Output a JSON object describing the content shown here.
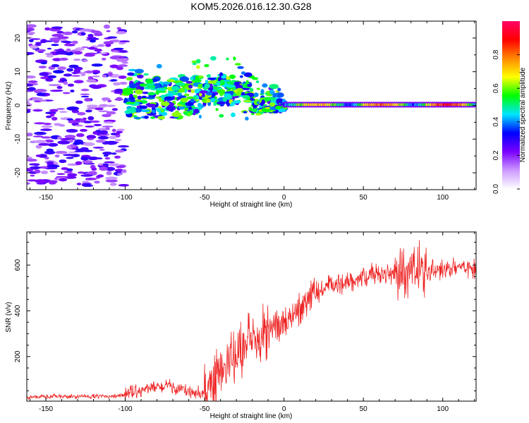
{
  "title": "KOM5.2026.016.12.30.G28",
  "chart_data": [
    {
      "type": "heatmap",
      "title": "KOM5.2026.016.12.30.G28",
      "xlabel": "Height of straight line (km)",
      "ylabel": "Frequency (Hz)",
      "xlim": [
        -162,
        121
      ],
      "ylim": [
        -25,
        25
      ],
      "xticks": [
        -150,
        -100,
        -50,
        0,
        50,
        100
      ],
      "yticks": [
        -20,
        -10,
        0,
        10,
        20
      ],
      "colorbar": {
        "label": "Normalized spectral amplitude",
        "range": [
          0,
          1
        ],
        "ticks": [
          0.0,
          0.2,
          0.4,
          0.6,
          0.8
        ],
        "colors": [
          "#ffffff",
          "#cc99ff",
          "#7a00ff",
          "#0000ff",
          "#00e5ff",
          "#00ff00",
          "#ffff00",
          "#ff8800",
          "#ff0000",
          "#ff0066"
        ]
      },
      "features": {
        "carrier_line": {
          "x_start": 0,
          "x_end": 121,
          "freq_hz": 0,
          "peak_amplitude": 0.9
        },
        "scattered_signal": {
          "x_range": [
            -162,
            -100
          ],
          "freq_range_hz": [
            -24,
            24
          ],
          "amplitude": 0.15
        },
        "transition_region": {
          "x_range": [
            -100,
            0
          ],
          "freq_range_hz": [
            -4,
            12
          ],
          "amplitude": 0.4
        }
      }
    },
    {
      "type": "line",
      "xlabel": "Height of straight line (km)",
      "ylabel": "SNR (v/v)",
      "xlim": [
        -162,
        121
      ],
      "ylim": [
        5,
        745
      ],
      "xticks": [
        -150,
        -100,
        -50,
        0,
        50,
        100
      ],
      "yticks": [
        200,
        400,
        600
      ],
      "series": [
        {
          "name": "SNR",
          "color": "#ee2222",
          "x": [
            -162,
            -150,
            -130,
            -110,
            -100,
            -95,
            -85,
            -75,
            -65,
            -55,
            -50,
            -45,
            -40,
            -35,
            -30,
            -25,
            -20,
            -15,
            -10,
            -5,
            0,
            5,
            10,
            15,
            20,
            30,
            40,
            50,
            60,
            70,
            75,
            80,
            85,
            90,
            100,
            110,
            121
          ],
          "values": [
            22,
            25,
            25,
            27,
            30,
            45,
            60,
            70,
            55,
            35,
            40,
            80,
            120,
            160,
            210,
            240,
            260,
            280,
            300,
            330,
            350,
            380,
            420,
            450,
            480,
            510,
            530,
            550,
            555,
            560,
            570,
            580,
            575,
            570,
            580,
            590,
            595
          ]
        }
      ]
    }
  ]
}
